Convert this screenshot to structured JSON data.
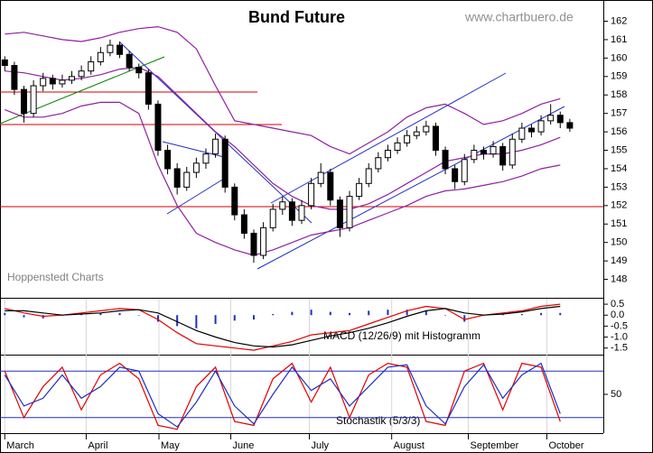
{
  "chart_data": [
    {
      "type": "candlestick",
      "title": "Bund Future",
      "source_url": "www.chartbuero.de",
      "credit": "Hoppenstedt Charts",
      "xlim": [
        -0.5,
        62.5
      ],
      "xticks": [
        {
          "value": 0,
          "label": "March"
        },
        {
          "value": 8.5,
          "label": "April"
        },
        {
          "value": 16.1,
          "label": "May"
        },
        {
          "value": 23.6,
          "label": "June"
        },
        {
          "value": 31.8,
          "label": "July"
        },
        {
          "value": 40.4,
          "label": "August"
        },
        {
          "value": 48.4,
          "label": "September"
        },
        {
          "value": 56.6,
          "label": "October"
        }
      ],
      "ylim": [
        147,
        163.15
      ],
      "yticks": [
        148,
        149,
        150,
        151,
        152,
        153,
        154,
        155,
        156,
        157,
        158,
        159,
        160,
        161,
        162
      ],
      "ohlc": [
        [
          159.9,
          160.1,
          159.3,
          159.6
        ],
        [
          159.6,
          159.8,
          158.0,
          158.3
        ],
        [
          158.3,
          158.5,
          156.5,
          157.0
        ],
        [
          157.0,
          158.8,
          156.8,
          158.5
        ],
        [
          158.5,
          159.2,
          158.2,
          158.9
        ],
        [
          158.9,
          159.1,
          158.3,
          158.6
        ],
        [
          158.6,
          159.1,
          158.4,
          158.8
        ],
        [
          158.8,
          159.3,
          158.6,
          159.0
        ],
        [
          159.0,
          159.6,
          158.8,
          159.3
        ],
        [
          159.3,
          160.1,
          159.1,
          159.8
        ],
        [
          159.8,
          160.6,
          159.6,
          160.3
        ],
        [
          160.3,
          161.0,
          160.1,
          160.7
        ],
        [
          160.7,
          160.9,
          160.0,
          160.2
        ],
        [
          160.2,
          160.4,
          159.3,
          159.5
        ],
        [
          159.5,
          159.7,
          158.9,
          159.2
        ],
        [
          159.2,
          159.4,
          157.2,
          157.5
        ],
        [
          157.5,
          157.7,
          154.7,
          155.0
        ],
        [
          155.0,
          155.3,
          153.7,
          154.0
        ],
        [
          154.0,
          154.3,
          152.6,
          153.0
        ],
        [
          153.0,
          154.1,
          152.8,
          153.8
        ],
        [
          153.8,
          154.6,
          153.5,
          154.3
        ],
        [
          154.3,
          155.1,
          154.0,
          154.8
        ],
        [
          154.8,
          155.9,
          154.6,
          155.6
        ],
        [
          155.6,
          155.8,
          152.7,
          153.0
        ],
        [
          153.0,
          153.2,
          151.2,
          151.5
        ],
        [
          151.5,
          151.8,
          150.2,
          150.5
        ],
        [
          150.5,
          150.7,
          148.9,
          149.3
        ],
        [
          149.3,
          151.1,
          149.1,
          150.8
        ],
        [
          150.8,
          152.1,
          150.6,
          151.8
        ],
        [
          151.8,
          152.5,
          151.5,
          152.2
        ],
        [
          152.2,
          152.4,
          150.9,
          151.2
        ],
        [
          151.2,
          152.3,
          151.0,
          152.0
        ],
        [
          152.0,
          153.5,
          151.8,
          153.2
        ],
        [
          153.2,
          154.3,
          153.0,
          153.8
        ],
        [
          153.8,
          154.0,
          152.0,
          152.3
        ],
        [
          152.3,
          152.5,
          150.3,
          150.8
        ],
        [
          150.8,
          152.8,
          150.6,
          152.5
        ],
        [
          152.5,
          153.5,
          152.3,
          153.2
        ],
        [
          153.2,
          154.3,
          153.0,
          154.0
        ],
        [
          154.0,
          154.9,
          153.8,
          154.6
        ],
        [
          154.6,
          155.3,
          154.4,
          155.0
        ],
        [
          155.0,
          155.7,
          154.8,
          155.4
        ],
        [
          155.4,
          156.1,
          155.2,
          155.8
        ],
        [
          155.8,
          156.3,
          155.6,
          156.0
        ],
        [
          156.0,
          156.6,
          155.8,
          156.3
        ],
        [
          156.3,
          156.5,
          154.7,
          155.0
        ],
        [
          155.0,
          155.2,
          153.7,
          154.0
        ],
        [
          154.0,
          154.2,
          152.9,
          153.3
        ],
        [
          153.3,
          154.8,
          153.1,
          154.5
        ],
        [
          154.5,
          155.3,
          154.3,
          155.0
        ],
        [
          155.0,
          155.2,
          154.5,
          154.8
        ],
        [
          154.8,
          155.5,
          154.6,
          155.2
        ],
        [
          155.2,
          155.4,
          153.9,
          154.2
        ],
        [
          154.2,
          155.9,
          154.0,
          155.6
        ],
        [
          155.6,
          156.5,
          155.4,
          156.2
        ],
        [
          156.2,
          156.4,
          155.7,
          156.0
        ],
        [
          156.0,
          156.9,
          155.8,
          156.6
        ],
        [
          156.6,
          157.5,
          156.4,
          156.9
        ],
        [
          156.9,
          157.1,
          156.2,
          156.5
        ],
        [
          156.5,
          156.7,
          156.0,
          156.2
        ]
      ],
      "candle_colors": {
        "up": "#ffffff",
        "down": "#000000"
      },
      "overlays": {
        "x": [
          0,
          2,
          4,
          6,
          8,
          10,
          12,
          14,
          16,
          18,
          20,
          22,
          24,
          26,
          28,
          30,
          32,
          34,
          36,
          38,
          40,
          42,
          44,
          46,
          48,
          50,
          52,
          54,
          56,
          58
        ],
        "series": [
          {
            "color": "#9020a0",
            "values": [
              161.3,
              161.4,
              161.2,
              161.0,
              160.9,
              161.1,
              161.4,
              161.6,
              161.7,
              161.4,
              160.5,
              158.5,
              156.6,
              156.4,
              156.2,
              156.0,
              155.8,
              155.2,
              154.8,
              155.4,
              156.0,
              156.8,
              157.3,
              157.5,
              157.0,
              156.4,
              156.6,
              157.0,
              157.5,
              157.8
            ]
          },
          {
            "color": "#9020a0",
            "values": [
              159.3,
              159.2,
              159.0,
              158.8,
              158.9,
              159.1,
              159.4,
              159.5,
              159.0,
              158.0,
              157.0,
              156.0,
              155.2,
              154.2,
              153.2,
              152.5,
              152.0,
              151.8,
              151.8,
              152.1,
              152.6,
              153.2,
              153.8,
              154.4,
              154.6,
              154.8,
              154.8,
              155.0,
              155.3,
              155.7
            ]
          },
          {
            "color": "#9020a0",
            "values": [
              157.2,
              156.8,
              156.8,
              157.0,
              157.4,
              157.6,
              157.6,
              157.0,
              154.2,
              152.0,
              150.5,
              150.0,
              149.6,
              149.3,
              149.6,
              150.0,
              150.4,
              150.6,
              150.8,
              151.2,
              151.6,
              152.0,
              152.5,
              152.8,
              152.9,
              153.1,
              153.3,
              153.6,
              154.0,
              154.2
            ]
          }
        ]
      }
    },
    {
      "type": "macd",
      "label": "MACD (12/26/9) mit Histogramm",
      "x": [
        0,
        2,
        4,
        6,
        8,
        10,
        12,
        14,
        16,
        18,
        20,
        22,
        24,
        26,
        28,
        30,
        32,
        34,
        36,
        38,
        40,
        42,
        44,
        46,
        48,
        50,
        52,
        54,
        56,
        58
      ],
      "ylim": [
        -1.8,
        0.75
      ],
      "yticks": [
        0.5,
        {
          "value": 0,
          "label": "0.0"
        },
        -0.5,
        {
          "value": -1,
          "label": "-1.0"
        },
        -1.5
      ],
      "series": [
        {
          "color": "#e00000",
          "values": [
            0.3,
            0.1,
            -0.05,
            0.0,
            0.1,
            0.2,
            0.3,
            0.25,
            -0.2,
            -0.8,
            -1.3,
            -1.4,
            -1.5,
            -1.6,
            -1.4,
            -1.2,
            -0.9,
            -0.8,
            -0.7,
            -0.4,
            -0.1,
            0.2,
            0.4,
            0.3,
            -0.2,
            0.0,
            0.1,
            0.2,
            0.4,
            0.5
          ]
        },
        {
          "color": "#000000",
          "values": [
            0.2,
            0.2,
            0.1,
            0.0,
            0.05,
            0.1,
            0.2,
            0.25,
            0.1,
            -0.3,
            -0.7,
            -1.0,
            -1.25,
            -1.4,
            -1.45,
            -1.35,
            -1.15,
            -0.95,
            -0.8,
            -0.6,
            -0.35,
            -0.05,
            0.2,
            0.3,
            0.1,
            0.0,
            0.05,
            0.15,
            0.3,
            0.4
          ]
        }
      ],
      "histogram": {
        "color": "#2030c0",
        "values": [
          0.1,
          -0.1,
          -0.15,
          0.0,
          0.05,
          0.1,
          0.1,
          0.0,
          -0.3,
          -0.5,
          -0.6,
          -0.4,
          -0.25,
          -0.2,
          0.05,
          0.15,
          0.25,
          0.15,
          0.1,
          0.2,
          0.25,
          0.25,
          0.2,
          0.0,
          -0.3,
          0.0,
          0.05,
          0.05,
          0.1,
          0.1
        ]
      }
    },
    {
      "type": "stochastic",
      "label": "Stochastik (5/3/3)",
      "x": [
        0,
        2,
        4,
        6,
        8,
        10,
        12,
        14,
        16,
        18,
        20,
        22,
        24,
        26,
        28,
        30,
        32,
        34,
        36,
        38,
        40,
        42,
        44,
        46,
        48,
        50,
        52,
        54,
        56,
        58
      ],
      "ylim": [
        0,
        100
      ],
      "yticks": [
        50
      ],
      "levels": [
        20,
        80
      ],
      "level_color": "#2030c0",
      "series": [
        {
          "color": "#e00000",
          "values": [
            80,
            20,
            60,
            85,
            30,
            75,
            90,
            70,
            10,
            5,
            60,
            85,
            15,
            10,
            70,
            90,
            40,
            85,
            20,
            75,
            90,
            85,
            15,
            10,
            80,
            90,
            30,
            90,
            85,
            15
          ]
        },
        {
          "color": "#2030c0",
          "values": [
            75,
            35,
            45,
            75,
            45,
            60,
            85,
            80,
            25,
            8,
            40,
            80,
            35,
            12,
            50,
            85,
            55,
            70,
            35,
            60,
            85,
            88,
            35,
            12,
            60,
            88,
            45,
            75,
            90,
            25
          ]
        }
      ]
    }
  ]
}
